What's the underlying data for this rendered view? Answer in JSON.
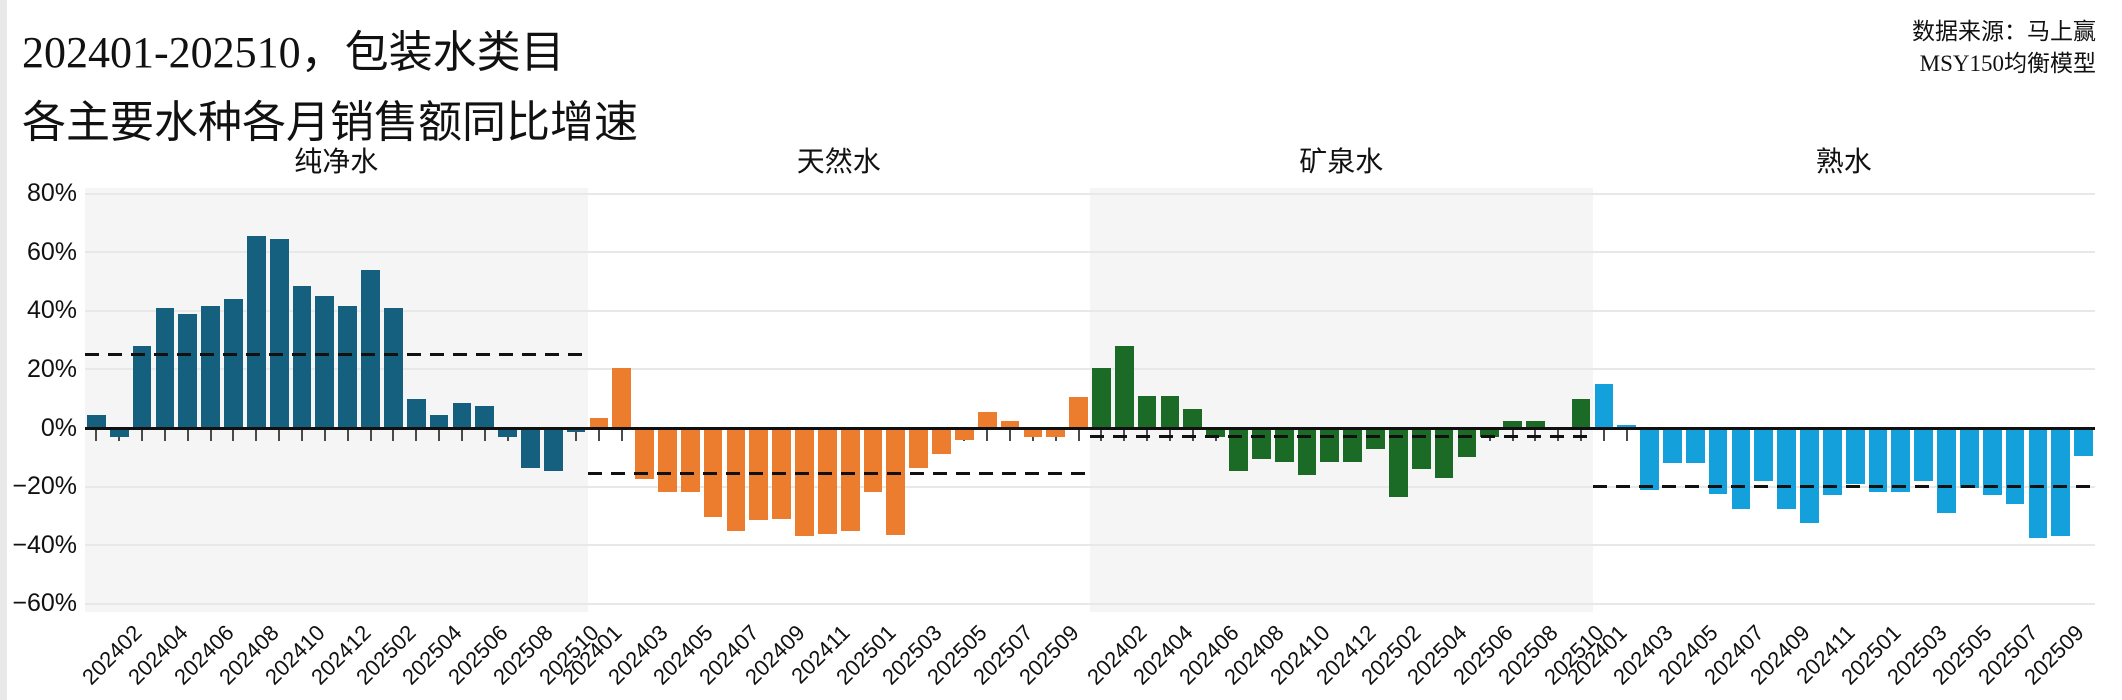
{
  "header": {
    "title_line1": "202401-202510，包装水类目",
    "title_line2": "各主要水种各月销售额同比增速",
    "source_line1": "数据来源：马上赢",
    "source_line2": "MSY150均衡模型"
  },
  "chart_data": {
    "type": "bar",
    "categories": [
      "202401",
      "202402",
      "202403",
      "202404",
      "202405",
      "202406",
      "202407",
      "202408",
      "202409",
      "202410",
      "202411",
      "202412",
      "202501",
      "202502",
      "202503",
      "202504",
      "202505",
      "202506",
      "202507",
      "202508",
      "202509",
      "202510"
    ],
    "y_axis": {
      "ylim": [
        -60,
        80
      ],
      "ticks": [
        80,
        60,
        40,
        20,
        0,
        -20,
        -40,
        -60
      ],
      "tick_labels": [
        "80%",
        "60%",
        "40%",
        "20%",
        "0%",
        "−20%",
        "−40%",
        "−60%"
      ],
      "grid": true
    },
    "legend_position": "none",
    "panels": [
      {
        "title": "纯净水",
        "color": "#15607f",
        "shaded_background": true,
        "band_color": "#f5f5f6",
        "dashed_mean_line": 25,
        "xtick_indices": [
          1,
          3,
          5,
          7,
          9,
          11,
          13,
          15,
          17,
          19,
          21
        ],
        "values": [
          4.5,
          -2.5,
          28,
          41,
          39,
          41.5,
          44,
          65.5,
          64.5,
          48.5,
          45,
          41.5,
          54,
          41,
          10,
          4.5,
          8.5,
          7.5,
          -2.5,
          -13,
          -14,
          -1
        ]
      },
      {
        "title": "天然水",
        "color": "#ed7d2e",
        "shaded_background": false,
        "band_color": "#ffffff",
        "dashed_mean_line": -15.5,
        "xtick_indices": [
          0,
          2,
          4,
          6,
          8,
          10,
          12,
          14,
          16,
          18,
          20
        ],
        "values": [
          3.5,
          20.5,
          -17,
          -21.5,
          -21.5,
          -30,
          -34.5,
          -31,
          -30.5,
          -36.5,
          -35.5,
          -34.5,
          -21.5,
          -36,
          -13,
          -8.5,
          -3.5,
          5.5,
          2.5,
          -2.5,
          -2.5,
          10.5
        ]
      },
      {
        "title": "矿泉水",
        "color": "#1b6b26",
        "shaded_background": true,
        "band_color": "#f5f5f6",
        "dashed_mean_line": -3,
        "xtick_indices": [
          1,
          3,
          5,
          7,
          9,
          11,
          13,
          15,
          17,
          19,
          21
        ],
        "values": [
          20.5,
          28,
          11,
          11,
          6.5,
          -2.5,
          -14,
          -10,
          -11,
          -15.5,
          -11,
          -11,
          -6.5,
          -23,
          -13.5,
          -16.5,
          -9.5,
          -2.5,
          2.5,
          2.5,
          0,
          10
        ]
      },
      {
        "title": "熟水",
        "color": "#14a0da",
        "shaded_background": false,
        "band_color": "#ffffff",
        "dashed_mean_line": -20,
        "xtick_indices": [
          0,
          2,
          4,
          6,
          8,
          10,
          12,
          14,
          16,
          18,
          20
        ],
        "values": [
          15,
          1,
          -20.5,
          -11.5,
          -11.5,
          -22,
          -27,
          -17.5,
          -27,
          -32,
          -22.5,
          -18.5,
          -21.5,
          -21.5,
          -17.5,
          -28.5,
          -20,
          -22.5,
          -25.5,
          -37,
          -36.5,
          -9
        ]
      }
    ]
  }
}
